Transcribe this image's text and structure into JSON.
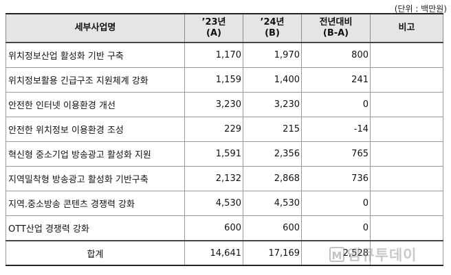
{
  "unit": "(단위 : 백만원)",
  "table": {
    "headers": {
      "name": "세부사업명",
      "year23": "’23년",
      "year23_sub": "(A)",
      "year24": "’24년",
      "year24_sub": "(B)",
      "diff": "전년대비",
      "diff_sub": "(B-A)",
      "note": "비고"
    },
    "rows": [
      {
        "name": "위치정보산업 활성화 기반 구축",
        "a": "1,170",
        "b": "1,970",
        "diff": "800",
        "note": ""
      },
      {
        "name": "위치정보활용 긴급구조 지원체계 강화",
        "a": "1,159",
        "b": "1,400",
        "diff": "241",
        "note": ""
      },
      {
        "name": "안전한 인터넷 이용환경 개선",
        "a": "3,230",
        "b": "3,230",
        "diff": "0",
        "note": ""
      },
      {
        "name": "안전한 위치정보 이용환경 조성",
        "a": "229",
        "b": "215",
        "diff": "-14",
        "note": ""
      },
      {
        "name": "혁신형 중소기업 방송광고 활성화 지원",
        "a": "1,591",
        "b": "2,356",
        "diff": "765",
        "note": ""
      },
      {
        "name": "지역밀착형 방송광고 활성화 기반구축",
        "a": "2,132",
        "b": "2,868",
        "diff": "736",
        "note": ""
      },
      {
        "name": "지역.중소방송 콘텐츠 경쟁력 강화",
        "a": "4,530",
        "b": "4,530",
        "diff": "0",
        "note": ""
      },
      {
        "name": "OTT산업 경쟁력 강화",
        "a": "600",
        "b": "600",
        "diff": "0",
        "note": ""
      }
    ],
    "total": {
      "name": "합계",
      "a": "14,641",
      "b": "17,169",
      "diff": "2,528",
      "note": ""
    }
  },
  "watermark": {
    "logo_letter": "M",
    "text": "엠큐투데이"
  }
}
